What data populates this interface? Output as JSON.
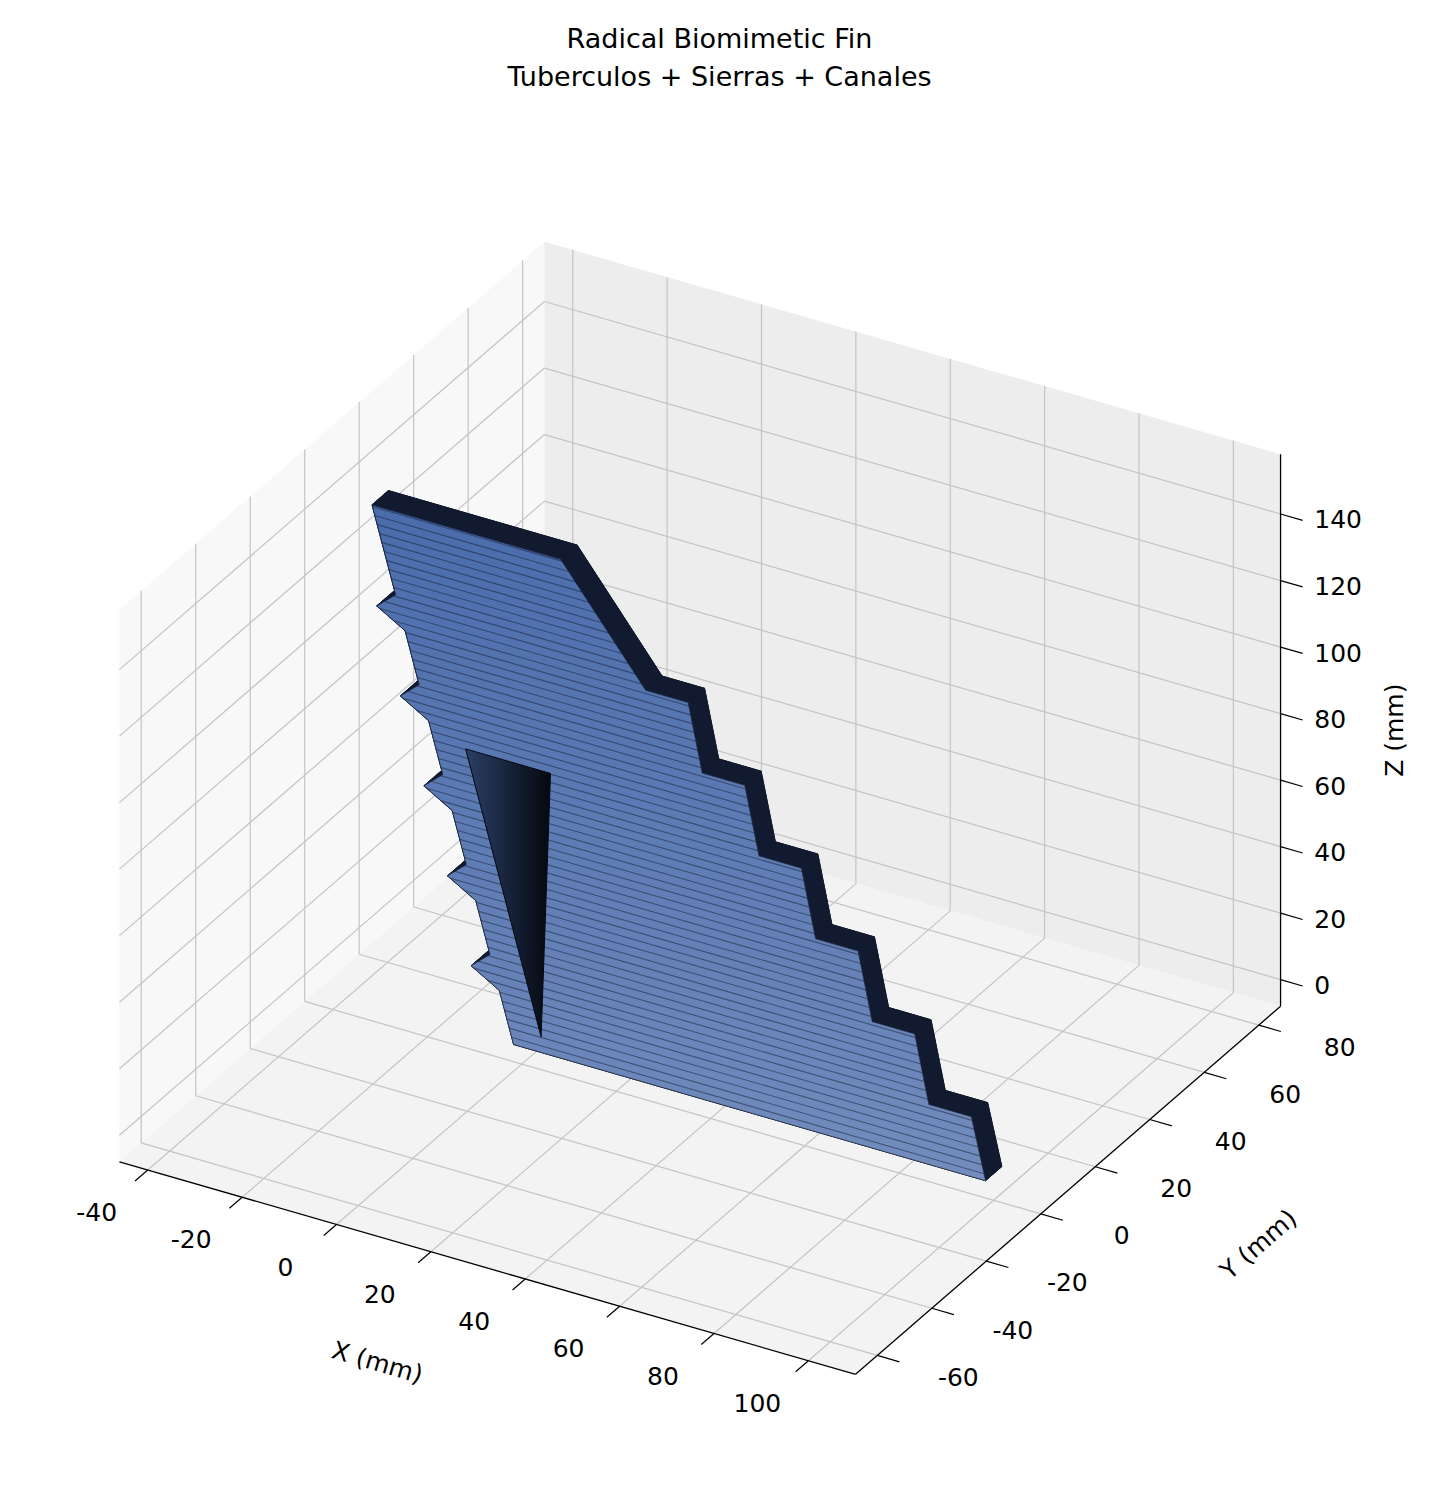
{
  "chart_data": {
    "type": "surface3d",
    "title": "Radical Biomimetic Fin",
    "subtitle": "Tuberculos + Sierras + Canales",
    "x_label": "X (mm)",
    "y_label": "Y (mm)",
    "z_label": "Z (mm)",
    "xlim": [
      -46,
      110
    ],
    "ylim": [
      -68,
      88
    ],
    "zlim": [
      -8,
      158
    ],
    "xticks": [
      -40,
      -20,
      0,
      20,
      40,
      60,
      80,
      100
    ],
    "yticks": [
      -60,
      -40,
      -20,
      0,
      20,
      40,
      60,
      80
    ],
    "zticks": [
      0,
      20,
      40,
      60,
      80,
      100,
      120,
      140
    ],
    "grid": true,
    "color": "#4a6cab",
    "surface": {
      "leading_edge": {
        "x": [
          0,
          -3,
          -9,
          -5,
          -8,
          -14,
          -10,
          -13,
          -19,
          -15,
          -18,
          -24,
          -20,
          -23,
          -29,
          -25,
          -30
        ],
        "z": [
          0,
          15,
          20,
          25,
          40,
          45,
          50,
          65,
          70,
          75,
          90,
          95,
          100,
          115,
          120,
          125,
          150
        ]
      },
      "trailing_edge": {
        "x": [
          100,
          97,
          88,
          85,
          76,
          73,
          64,
          61,
          52,
          49,
          40,
          37,
          28,
          10
        ],
        "z": [
          0,
          18,
          18,
          38,
          38,
          58,
          58,
          78,
          78,
          98,
          98,
          118,
          118,
          150
        ]
      },
      "y_faces": [
        -3,
        3
      ],
      "channel": {
        "x": [
          -10,
          8,
          6
        ],
        "z": [
          85,
          85,
          5
        ]
      }
    }
  }
}
